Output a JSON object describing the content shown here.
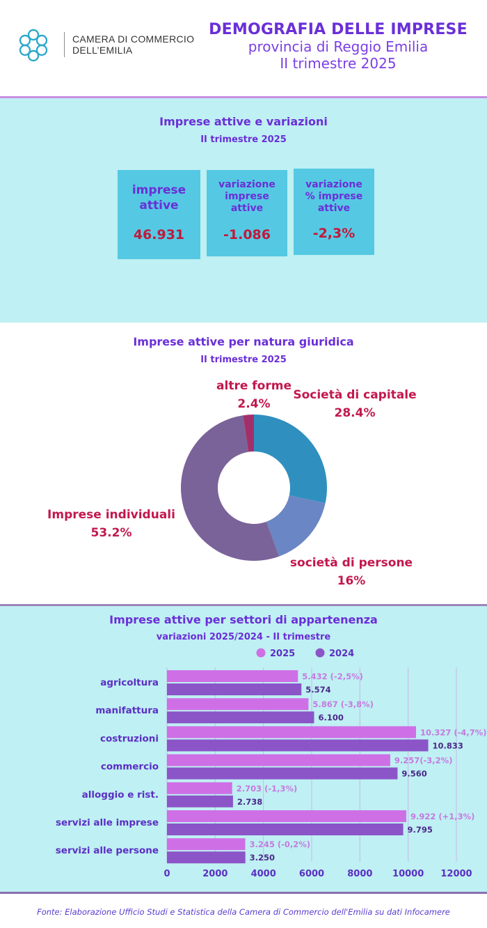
{
  "header": {
    "logo_line1": "CAMERA DI COMMERCIO",
    "logo_line2": "DELL’EMILIA",
    "title": "DEMOGRAFIA DELLE IMPRESE",
    "subtitle1": "provincia di Reggio Emilia",
    "subtitle2": "II trimestre 2025"
  },
  "kpi_section": {
    "title": "Imprese attive e variazioni",
    "subtitle": "II trimestre 2025",
    "boxes": [
      {
        "label_line1": "imprese",
        "label_line2": "attive",
        "label_line3": "",
        "value": "46.931"
      },
      {
        "label_line1": "variazione",
        "label_line2": "imprese",
        "label_line3": "attive",
        "value": "-1.086"
      },
      {
        "label_line1": "variazione",
        "label_line2": "% imprese",
        "label_line3": "attive",
        "value": "-2,3%"
      }
    ]
  },
  "chart_data": [
    {
      "type": "pie",
      "title": "Imprese attive per natura giuridica",
      "subtitle": "II trimestre 2025",
      "donut": true,
      "slices": [
        {
          "label": "Società di capitale",
          "pct_label": "28.4%",
          "value": 28.4,
          "color": "#2f8fbf"
        },
        {
          "label": "società di persone",
          "pct_label": "16%",
          "value": 16.0,
          "color": "#6a86c4"
        },
        {
          "label": "Imprese individuali",
          "pct_label": "53.2%",
          "value": 53.2,
          "color": "#7a6399"
        },
        {
          "label": "altre forme",
          "pct_label": "2.4%",
          "value": 2.4,
          "color": "#a32f6a"
        }
      ]
    },
    {
      "type": "bar",
      "orientation": "horizontal",
      "title": "Imprese attive per settori di appartenenza",
      "subtitle": "variazioni 2025/2024 - II trimestre",
      "categories": [
        "agricoltura",
        "manifattura",
        "costruzioni",
        "commercio",
        "alloggio e rist.",
        "servizi alle imprese",
        "servizi alle persone"
      ],
      "series": [
        {
          "name": "2025",
          "color": "#cf6fe6",
          "values": [
            5432,
            5867,
            10327,
            9257,
            2703,
            9922,
            3245
          ],
          "labels": [
            "5.432 (-2,5%)",
            "5.867 (-3,8%)",
            "10.327 (-4,7%)",
            "9.257(-3,2%)",
            "2.703 (-1,3%)",
            "9.922 (+1,3%)",
            "3.245  (-0,2%)"
          ]
        },
        {
          "name": "2024",
          "color": "#8b55c8",
          "values": [
            5574,
            6100,
            10833,
            9560,
            2738,
            9795,
            3250
          ],
          "labels": [
            "5.574",
            "6.100",
            "10.833",
            "9.560",
            "2.738",
            "9.795",
            "3.250"
          ]
        }
      ],
      "xticks": [
        "0",
        "2000",
        "4000",
        "6000",
        "8000",
        "10000",
        "12000"
      ],
      "xlim": [
        0,
        12000
      ],
      "grid": true,
      "legend": "top-center"
    }
  ],
  "footer": {
    "source": "Fonte: Elaborazione Ufficio Studi e Statistica della Camera di Commercio dell'Emilia su dati Infocamere"
  }
}
